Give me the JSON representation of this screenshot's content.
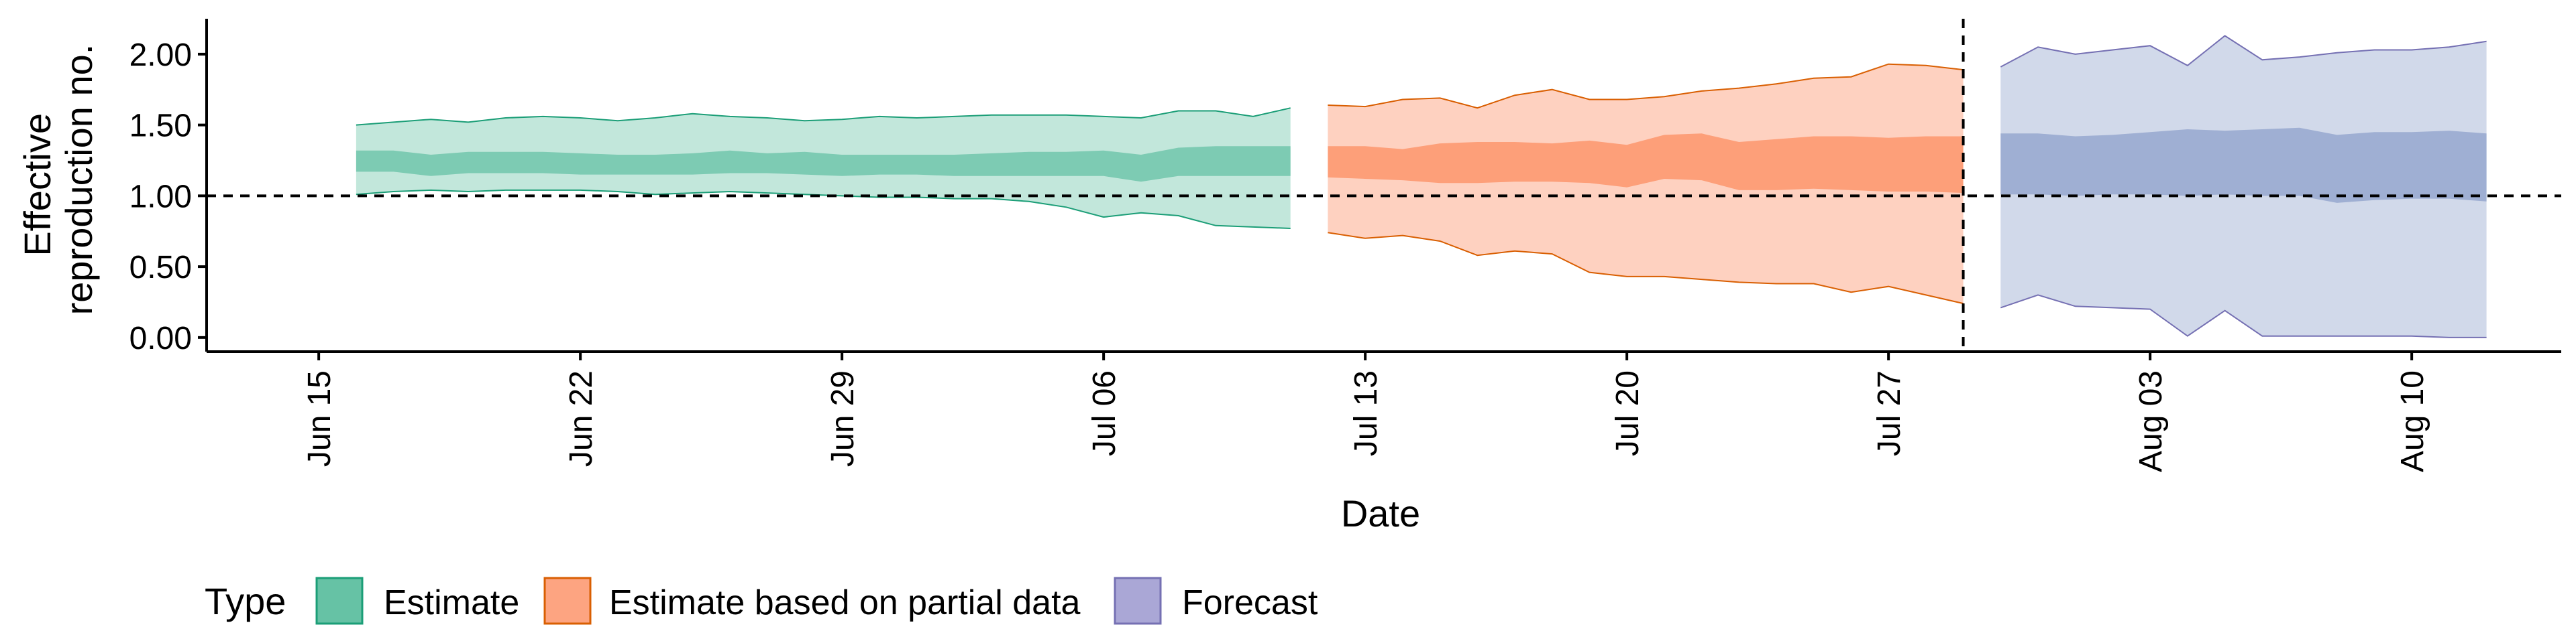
{
  "chart_data": {
    "type": "area",
    "xlabel": "Date",
    "ylabel_lines": [
      "Effective",
      "reproduction no."
    ],
    "ylim": [
      -0.1,
      2.25
    ],
    "xlim": [
      "2020-06-12",
      "2020-08-14"
    ],
    "yticks": [
      0.0,
      0.5,
      1.0,
      1.5,
      2.0
    ],
    "ytick_labels": [
      "0.00",
      "0.50",
      "1.00",
      "1.50",
      "2.00"
    ],
    "xticks": [
      "2020-06-15",
      "2020-06-22",
      "2020-06-29",
      "2020-07-06",
      "2020-07-13",
      "2020-07-20",
      "2020-07-27",
      "2020-08-03",
      "2020-08-10"
    ],
    "xtick_labels": [
      "Jun 15",
      "Jun 22",
      "Jun 29",
      "Jul 06",
      "Jul 13",
      "Jul 20",
      "Jul 27",
      "Aug 03",
      "Aug 10"
    ],
    "reference_hline": 1.0,
    "reference_vline": "2020-07-29",
    "grid": false,
    "legend": {
      "position": "bottom-left",
      "title": "Type",
      "entries": [
        "Estimate",
        "Estimate based on partial data",
        "Forecast"
      ]
    },
    "series": [
      {
        "name": "Estimate",
        "fill": "#66c2a5",
        "stroke": "#1b9e77",
        "dates": [
          "2020-06-16",
          "2020-06-17",
          "2020-06-18",
          "2020-06-19",
          "2020-06-20",
          "2020-06-21",
          "2020-06-22",
          "2020-06-23",
          "2020-06-24",
          "2020-06-25",
          "2020-06-26",
          "2020-06-27",
          "2020-06-28",
          "2020-06-29",
          "2020-06-30",
          "2020-07-01",
          "2020-07-02",
          "2020-07-03",
          "2020-07-04",
          "2020-07-05",
          "2020-07-06",
          "2020-07-07",
          "2020-07-08",
          "2020-07-09",
          "2020-07-10",
          "2020-07-11"
        ],
        "upper_90": [
          1.5,
          1.52,
          1.54,
          1.52,
          1.55,
          1.56,
          1.55,
          1.53,
          1.55,
          1.58,
          1.56,
          1.55,
          1.53,
          1.54,
          1.56,
          1.55,
          1.56,
          1.57,
          1.57,
          1.57,
          1.56,
          1.55,
          1.6,
          1.6,
          1.56,
          1.62
        ],
        "upper_50": [
          1.32,
          1.32,
          1.29,
          1.31,
          1.31,
          1.31,
          1.3,
          1.29,
          1.29,
          1.3,
          1.32,
          1.3,
          1.31,
          1.29,
          1.29,
          1.29,
          1.29,
          1.3,
          1.31,
          1.31,
          1.32,
          1.29,
          1.34,
          1.35,
          1.35,
          1.35
        ],
        "lower_50": [
          1.17,
          1.17,
          1.14,
          1.16,
          1.16,
          1.16,
          1.15,
          1.15,
          1.15,
          1.15,
          1.16,
          1.16,
          1.15,
          1.14,
          1.15,
          1.15,
          1.14,
          1.14,
          1.14,
          1.14,
          1.14,
          1.1,
          1.14,
          1.14,
          1.14,
          1.14
        ],
        "lower_90": [
          1.01,
          1.03,
          1.04,
          1.03,
          1.04,
          1.04,
          1.04,
          1.03,
          1.01,
          1.02,
          1.03,
          1.02,
          1.01,
          1.0,
          0.99,
          0.99,
          0.98,
          0.98,
          0.96,
          0.92,
          0.85,
          0.88,
          0.86,
          0.79,
          0.78,
          0.77
        ]
      },
      {
        "name": "Estimate based on partial data",
        "fill": "#fc8d62",
        "stroke": "#d95f02",
        "dates": [
          "2020-07-12",
          "2020-07-13",
          "2020-07-14",
          "2020-07-15",
          "2020-07-16",
          "2020-07-17",
          "2020-07-18",
          "2020-07-19",
          "2020-07-20",
          "2020-07-21",
          "2020-07-22",
          "2020-07-23",
          "2020-07-24",
          "2020-07-25",
          "2020-07-26",
          "2020-07-27",
          "2020-07-28",
          "2020-07-29"
        ],
        "upper_90": [
          1.64,
          1.63,
          1.68,
          1.69,
          1.62,
          1.71,
          1.75,
          1.68,
          1.68,
          1.7,
          1.74,
          1.76,
          1.79,
          1.83,
          1.84,
          1.93,
          1.92,
          1.89
        ],
        "upper_50": [
          1.35,
          1.35,
          1.33,
          1.37,
          1.38,
          1.38,
          1.37,
          1.39,
          1.36,
          1.43,
          1.44,
          1.38,
          1.4,
          1.42,
          1.42,
          1.41,
          1.42,
          1.42
        ],
        "lower_50": [
          1.13,
          1.12,
          1.11,
          1.09,
          1.09,
          1.1,
          1.1,
          1.09,
          1.06,
          1.12,
          1.11,
          1.04,
          1.04,
          1.05,
          1.04,
          1.03,
          1.03,
          1.02
        ],
        "lower_90": [
          0.74,
          0.7,
          0.72,
          0.68,
          0.58,
          0.61,
          0.59,
          0.46,
          0.43,
          0.43,
          0.41,
          0.39,
          0.38,
          0.38,
          0.32,
          0.36,
          0.3,
          0.24
        ]
      },
      {
        "name": "Forecast",
        "fill": "#8da0cb",
        "stroke": "#7570b3",
        "dates": [
          "2020-07-30",
          "2020-07-31",
          "2020-08-01",
          "2020-08-02",
          "2020-08-03",
          "2020-08-04",
          "2020-08-05",
          "2020-08-06",
          "2020-08-07",
          "2020-08-08",
          "2020-08-09",
          "2020-08-10",
          "2020-08-11",
          "2020-08-12"
        ],
        "upper_90": [
          1.91,
          2.05,
          2.0,
          2.03,
          2.06,
          1.92,
          2.13,
          1.96,
          1.98,
          2.01,
          2.03,
          2.03,
          2.05,
          2.09
        ],
        "upper_50": [
          1.44,
          1.44,
          1.42,
          1.43,
          1.45,
          1.47,
          1.46,
          1.47,
          1.48,
          1.43,
          1.45,
          1.45,
          1.46,
          1.44
        ],
        "lower_50": [
          1.01,
          1.01,
          1.0,
          1.01,
          1.01,
          1.0,
          1.01,
          1.0,
          1.0,
          0.95,
          0.97,
          0.98,
          0.98,
          0.96
        ],
        "lower_90": [
          0.21,
          0.3,
          0.22,
          0.21,
          0.2,
          0.01,
          0.19,
          0.01,
          0.01,
          0.01,
          0.01,
          0.01,
          0.0,
          0.0
        ]
      }
    ]
  }
}
